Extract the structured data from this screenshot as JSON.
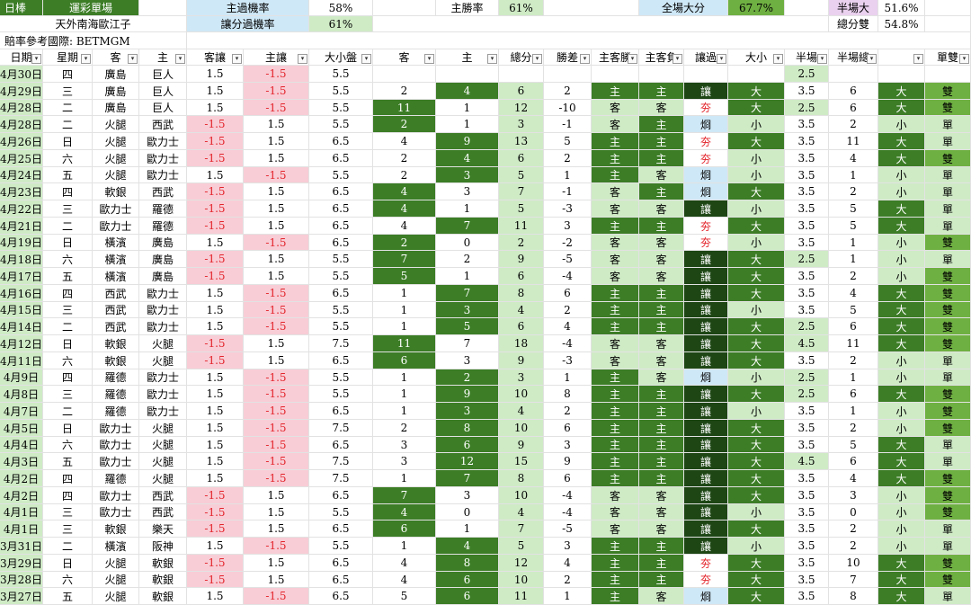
{
  "top": {
    "sport": "日棒",
    "sheet_name": "運彩單場",
    "author": "天外南海歐江子",
    "odds_ref": "賠率參考國際: BETMGM",
    "home_cover_label": "主過機率",
    "home_cover_value": "58%",
    "home_win_label": "主勝率",
    "home_win_value": "61%",
    "full_over_label": "全場大分",
    "full_over_value": "67.7%",
    "half_over_label": "半場大",
    "half_over_value": "51.6%",
    "spread_cover_label": "讓分過機率",
    "spread_cover_value": "61%",
    "total_even_label": "總分雙",
    "total_even_value": "54.8%"
  },
  "headers": [
    "日期",
    "星期",
    "客",
    "主",
    "客讓",
    "主讓",
    "大小盤",
    "客",
    "主",
    "總分",
    "勝差",
    "主客勝",
    "主客負",
    "讓過",
    "大小",
    "半場",
    "半場總",
    "",
    "單雙"
  ],
  "filter_icons": [
    "dropdown-arrow-icon"
  ],
  "colors": {
    "dark_green": "#3c7d26",
    "mid_green": "#6fb042",
    "light_green": "#cfebc6",
    "pink": "#f8cdd6",
    "light_blue": "#cfe8f7",
    "red_text": "#e3242b",
    "black_green": "#1d4614"
  },
  "rows": [
    {
      "d": "4月30日",
      "w": "四",
      "a": "廣島",
      "h": "巨人",
      "ah": "1.5",
      "hh": "-1.5",
      "ou": "5.5",
      "as": "",
      "hs": "",
      "t": "",
      "m": "",
      "wl": "",
      "wl2": "",
      "cv": "",
      "bs": "",
      "ho": "2.5",
      "ht": "",
      "hb": "",
      "oe": ""
    },
    {
      "d": "4月29日",
      "w": "三",
      "a": "廣島",
      "h": "巨人",
      "ah": "1.5",
      "hh": "-1.5",
      "ou": "5.5",
      "as": "2",
      "hs": "4",
      "t": "6",
      "m": "2",
      "wl": "主",
      "wl2": "主",
      "cv": "讓",
      "bs": "大",
      "ho": "3.5",
      "ht": "6",
      "hb": "大",
      "oe": "雙"
    },
    {
      "d": "4月28日",
      "w": "二",
      "a": "廣島",
      "h": "巨人",
      "ah": "1.5",
      "hh": "-1.5",
      "ou": "5.5",
      "as": "11",
      "hs": "1",
      "t": "12",
      "m": "-10",
      "wl": "客",
      "wl2": "客",
      "cv": "夯",
      "bs": "大",
      "ho": "2.5",
      "ht": "6",
      "hb": "大",
      "oe": "雙"
    },
    {
      "d": "4月28日",
      "w": "二",
      "a": "火腿",
      "h": "西武",
      "ah": "-1.5",
      "hh": "1.5",
      "ou": "5.5",
      "as": "2",
      "hs": "1",
      "t": "3",
      "m": "-1",
      "wl": "客",
      "wl2": "主",
      "cv": "烱",
      "bs": "小",
      "ho": "3.5",
      "ht": "2",
      "hb": "小",
      "oe": "單"
    },
    {
      "d": "4月26日",
      "w": "日",
      "a": "火腿",
      "h": "歐力士",
      "ah": "-1.5",
      "hh": "1.5",
      "ou": "6.5",
      "as": "4",
      "hs": "9",
      "t": "13",
      "m": "5",
      "wl": "主",
      "wl2": "主",
      "cv": "夯",
      "bs": "大",
      "ho": "3.5",
      "ht": "11",
      "hb": "大",
      "oe": "單"
    },
    {
      "d": "4月25日",
      "w": "六",
      "a": "火腿",
      "h": "歐力士",
      "ah": "-1.5",
      "hh": "1.5",
      "ou": "6.5",
      "as": "2",
      "hs": "4",
      "t": "6",
      "m": "2",
      "wl": "主",
      "wl2": "主",
      "cv": "夯",
      "bs": "小",
      "ho": "3.5",
      "ht": "4",
      "hb": "大",
      "oe": "雙"
    },
    {
      "d": "4月24日",
      "w": "五",
      "a": "火腿",
      "h": "歐力士",
      "ah": "1.5",
      "hh": "-1.5",
      "ou": "5.5",
      "as": "2",
      "hs": "3",
      "t": "5",
      "m": "1",
      "wl": "主",
      "wl2": "客",
      "cv": "烱",
      "bs": "小",
      "ho": "3.5",
      "ht": "1",
      "hb": "小",
      "oe": "單"
    },
    {
      "d": "4月23日",
      "w": "四",
      "a": "軟銀",
      "h": "西武",
      "ah": "-1.5",
      "hh": "1.5",
      "ou": "6.5",
      "as": "4",
      "hs": "3",
      "t": "7",
      "m": "-1",
      "wl": "客",
      "wl2": "主",
      "cv": "烱",
      "bs": "大",
      "ho": "3.5",
      "ht": "2",
      "hb": "小",
      "oe": "單"
    },
    {
      "d": "4月22日",
      "w": "三",
      "a": "歐力士",
      "h": "羅德",
      "ah": "-1.5",
      "hh": "1.5",
      "ou": "6.5",
      "as": "4",
      "hs": "1",
      "t": "5",
      "m": "-3",
      "wl": "客",
      "wl2": "客",
      "cv": "讓",
      "bs": "小",
      "ho": "3.5",
      "ht": "5",
      "hb": "大",
      "oe": "單"
    },
    {
      "d": "4月21日",
      "w": "二",
      "a": "歐力士",
      "h": "羅德",
      "ah": "-1.5",
      "hh": "1.5",
      "ou": "6.5",
      "as": "4",
      "hs": "7",
      "t": "11",
      "m": "3",
      "wl": "主",
      "wl2": "主",
      "cv": "夯",
      "bs": "大",
      "ho": "3.5",
      "ht": "5",
      "hb": "大",
      "oe": "單"
    },
    {
      "d": "4月19日",
      "w": "日",
      "a": "橫濱",
      "h": "廣島",
      "ah": "1.5",
      "hh": "-1.5",
      "ou": "6.5",
      "as": "2",
      "hs": "0",
      "t": "2",
      "m": "-2",
      "wl": "客",
      "wl2": "客",
      "cv": "夯",
      "bs": "小",
      "ho": "3.5",
      "ht": "1",
      "hb": "小",
      "oe": "雙"
    },
    {
      "d": "4月18日",
      "w": "六",
      "a": "橫濱",
      "h": "廣島",
      "ah": "-1.5",
      "hh": "1.5",
      "ou": "5.5",
      "as": "7",
      "hs": "2",
      "t": "9",
      "m": "-5",
      "wl": "客",
      "wl2": "客",
      "cv": "讓",
      "bs": "大",
      "ho": "2.5",
      "ht": "1",
      "hb": "小",
      "oe": "單"
    },
    {
      "d": "4月17日",
      "w": "五",
      "a": "橫濱",
      "h": "廣島",
      "ah": "-1.5",
      "hh": "1.5",
      "ou": "5.5",
      "as": "5",
      "hs": "1",
      "t": "6",
      "m": "-4",
      "wl": "客",
      "wl2": "客",
      "cv": "讓",
      "bs": "大",
      "ho": "3.5",
      "ht": "2",
      "hb": "小",
      "oe": "雙"
    },
    {
      "d": "4月16日",
      "w": "四",
      "a": "西武",
      "h": "歐力士",
      "ah": "1.5",
      "hh": "-1.5",
      "ou": "6.5",
      "as": "1",
      "hs": "7",
      "t": "8",
      "m": "6",
      "wl": "主",
      "wl2": "主",
      "cv": "讓",
      "bs": "大",
      "ho": "3.5",
      "ht": "4",
      "hb": "大",
      "oe": "雙"
    },
    {
      "d": "4月15日",
      "w": "三",
      "a": "西武",
      "h": "歐力士",
      "ah": "1.5",
      "hh": "-1.5",
      "ou": "5.5",
      "as": "1",
      "hs": "3",
      "t": "4",
      "m": "2",
      "wl": "主",
      "wl2": "主",
      "cv": "讓",
      "bs": "小",
      "ho": "3.5",
      "ht": "5",
      "hb": "大",
      "oe": "雙"
    },
    {
      "d": "4月14日",
      "w": "二",
      "a": "西武",
      "h": "歐力士",
      "ah": "1.5",
      "hh": "-1.5",
      "ou": "5.5",
      "as": "1",
      "hs": "5",
      "t": "6",
      "m": "4",
      "wl": "主",
      "wl2": "主",
      "cv": "讓",
      "bs": "大",
      "ho": "2.5",
      "ht": "6",
      "hb": "大",
      "oe": "雙"
    },
    {
      "d": "4月12日",
      "w": "日",
      "a": "軟銀",
      "h": "火腿",
      "ah": "-1.5",
      "hh": "1.5",
      "ou": "7.5",
      "as": "11",
      "hs": "7",
      "t": "18",
      "m": "-4",
      "wl": "客",
      "wl2": "客",
      "cv": "讓",
      "bs": "大",
      "ho": "4.5",
      "ht": "11",
      "hb": "大",
      "oe": "雙"
    },
    {
      "d": "4月11日",
      "w": "六",
      "a": "軟銀",
      "h": "火腿",
      "ah": "-1.5",
      "hh": "1.5",
      "ou": "6.5",
      "as": "6",
      "hs": "3",
      "t": "9",
      "m": "-3",
      "wl": "客",
      "wl2": "客",
      "cv": "讓",
      "bs": "大",
      "ho": "3.5",
      "ht": "2",
      "hb": "小",
      "oe": "單"
    },
    {
      "d": "4月9日",
      "w": "四",
      "a": "羅德",
      "h": "歐力士",
      "ah": "1.5",
      "hh": "-1.5",
      "ou": "5.5",
      "as": "1",
      "hs": "2",
      "t": "3",
      "m": "1",
      "wl": "主",
      "wl2": "客",
      "cv": "烱",
      "bs": "小",
      "ho": "2.5",
      "ht": "1",
      "hb": "小",
      "oe": "單"
    },
    {
      "d": "4月8日",
      "w": "三",
      "a": "羅德",
      "h": "歐力士",
      "ah": "1.5",
      "hh": "-1.5",
      "ou": "5.5",
      "as": "1",
      "hs": "9",
      "t": "10",
      "m": "8",
      "wl": "主",
      "wl2": "主",
      "cv": "讓",
      "bs": "大",
      "ho": "2.5",
      "ht": "6",
      "hb": "大",
      "oe": "雙"
    },
    {
      "d": "4月7日",
      "w": "二",
      "a": "羅德",
      "h": "歐力士",
      "ah": "1.5",
      "hh": "-1.5",
      "ou": "6.5",
      "as": "1",
      "hs": "3",
      "t": "4",
      "m": "2",
      "wl": "主",
      "wl2": "主",
      "cv": "讓",
      "bs": "小",
      "ho": "3.5",
      "ht": "1",
      "hb": "小",
      "oe": "雙"
    },
    {
      "d": "4月5日",
      "w": "日",
      "a": "歐力士",
      "h": "火腿",
      "ah": "1.5",
      "hh": "-1.5",
      "ou": "7.5",
      "as": "2",
      "hs": "8",
      "t": "10",
      "m": "6",
      "wl": "主",
      "wl2": "主",
      "cv": "讓",
      "bs": "大",
      "ho": "3.5",
      "ht": "2",
      "hb": "小",
      "oe": "雙"
    },
    {
      "d": "4月4日",
      "w": "六",
      "a": "歐力士",
      "h": "火腿",
      "ah": "1.5",
      "hh": "-1.5",
      "ou": "6.5",
      "as": "3",
      "hs": "6",
      "t": "9",
      "m": "3",
      "wl": "主",
      "wl2": "主",
      "cv": "讓",
      "bs": "大",
      "ho": "3.5",
      "ht": "5",
      "hb": "大",
      "oe": "單"
    },
    {
      "d": "4月3日",
      "w": "五",
      "a": "歐力士",
      "h": "火腿",
      "ah": "1.5",
      "hh": "-1.5",
      "ou": "7.5",
      "as": "3",
      "hs": "12",
      "t": "15",
      "m": "9",
      "wl": "主",
      "wl2": "主",
      "cv": "讓",
      "bs": "大",
      "ho": "4.5",
      "ht": "6",
      "hb": "大",
      "oe": "單"
    },
    {
      "d": "4月2日",
      "w": "四",
      "a": "羅德",
      "h": "火腿",
      "ah": "1.5",
      "hh": "-1.5",
      "ou": "7.5",
      "as": "1",
      "hs": "7",
      "t": "8",
      "m": "6",
      "wl": "主",
      "wl2": "主",
      "cv": "讓",
      "bs": "大",
      "ho": "3.5",
      "ht": "4",
      "hb": "大",
      "oe": "雙"
    },
    {
      "d": "4月2日",
      "w": "四",
      "a": "歐力士",
      "h": "西武",
      "ah": "-1.5",
      "hh": "1.5",
      "ou": "6.5",
      "as": "7",
      "hs": "3",
      "t": "10",
      "m": "-4",
      "wl": "客",
      "wl2": "客",
      "cv": "讓",
      "bs": "大",
      "ho": "3.5",
      "ht": "3",
      "hb": "小",
      "oe": "雙"
    },
    {
      "d": "4月1日",
      "w": "三",
      "a": "歐力士",
      "h": "西武",
      "ah": "-1.5",
      "hh": "1.5",
      "ou": "5.5",
      "as": "4",
      "hs": "0",
      "t": "4",
      "m": "-4",
      "wl": "客",
      "wl2": "客",
      "cv": "讓",
      "bs": "小",
      "ho": "3.5",
      "ht": "0",
      "hb": "小",
      "oe": "雙"
    },
    {
      "d": "4月1日",
      "w": "三",
      "a": "軟銀",
      "h": "樂天",
      "ah": "-1.5",
      "hh": "1.5",
      "ou": "6.5",
      "as": "6",
      "hs": "1",
      "t": "7",
      "m": "-5",
      "wl": "客",
      "wl2": "客",
      "cv": "讓",
      "bs": "大",
      "ho": "3.5",
      "ht": "2",
      "hb": "小",
      "oe": "單"
    },
    {
      "d": "3月31日",
      "w": "二",
      "a": "橫濱",
      "h": "阪神",
      "ah": "1.5",
      "hh": "-1.5",
      "ou": "5.5",
      "as": "1",
      "hs": "4",
      "t": "5",
      "m": "3",
      "wl": "主",
      "wl2": "主",
      "cv": "讓",
      "bs": "小",
      "ho": "3.5",
      "ht": "2",
      "hb": "小",
      "oe": "單"
    },
    {
      "d": "3月29日",
      "w": "日",
      "a": "火腿",
      "h": "軟銀",
      "ah": "-1.5",
      "hh": "1.5",
      "ou": "6.5",
      "as": "4",
      "hs": "8",
      "t": "12",
      "m": "4",
      "wl": "主",
      "wl2": "主",
      "cv": "夯",
      "bs": "大",
      "ho": "3.5",
      "ht": "10",
      "hb": "大",
      "oe": "雙"
    },
    {
      "d": "3月28日",
      "w": "六",
      "a": "火腿",
      "h": "軟銀",
      "ah": "-1.5",
      "hh": "1.5",
      "ou": "6.5",
      "as": "4",
      "hs": "6",
      "t": "10",
      "m": "2",
      "wl": "主",
      "wl2": "主",
      "cv": "夯",
      "bs": "大",
      "ho": "3.5",
      "ht": "7",
      "hb": "大",
      "oe": "雙"
    },
    {
      "d": "3月27日",
      "w": "五",
      "a": "火腿",
      "h": "軟銀",
      "ah": "1.5",
      "hh": "-1.5",
      "ou": "6.5",
      "as": "5",
      "hs": "6",
      "t": "11",
      "m": "1",
      "wl": "主",
      "wl2": "客",
      "cv": "烱",
      "bs": "大",
      "ho": "3.5",
      "ht": "8",
      "hb": "大",
      "oe": "單"
    }
  ]
}
